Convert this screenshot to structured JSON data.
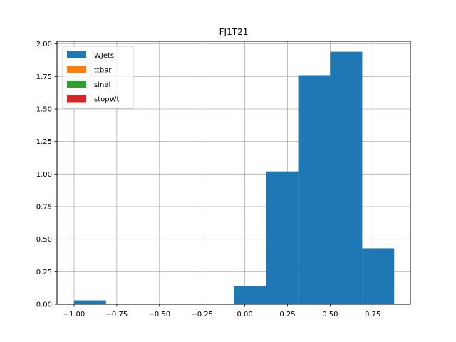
{
  "chart_data": {
    "type": "bar",
    "title": "FJ1T21",
    "xlabel": "",
    "ylabel": "",
    "xlim": [
      -1.1,
      0.97
    ],
    "ylim": [
      0,
      2.02
    ],
    "grid": true,
    "legend_position": "upper-left",
    "x_ticks": [
      {
        "value": -1.0,
        "label": "−1.00"
      },
      {
        "value": -0.75,
        "label": "−0.75"
      },
      {
        "value": -0.5,
        "label": "−0.50"
      },
      {
        "value": -0.25,
        "label": "−0.25"
      },
      {
        "value": 0.0,
        "label": "0.00"
      },
      {
        "value": 0.25,
        "label": "0.25"
      },
      {
        "value": 0.5,
        "label": "0.50"
      },
      {
        "value": 0.75,
        "label": "0.75"
      }
    ],
    "y_ticks": [
      {
        "value": 0.0,
        "label": "0.00"
      },
      {
        "value": 0.25,
        "label": "0.25"
      },
      {
        "value": 0.5,
        "label": "0.50"
      },
      {
        "value": 0.75,
        "label": "0.75"
      },
      {
        "value": 1.0,
        "label": "1.00"
      },
      {
        "value": 1.25,
        "label": "1.25"
      },
      {
        "value": 1.5,
        "label": "1.50"
      },
      {
        "value": 1.75,
        "label": "1.75"
      },
      {
        "value": 2.0,
        "label": "2.00"
      }
    ],
    "series": [
      {
        "name": "WJets",
        "color": "#1f77b4",
        "bins": [
          {
            "x0": -1.0,
            "x1": -0.813,
            "value": 0.03
          },
          {
            "x0": -0.063,
            "x1": 0.125,
            "value": 0.14
          },
          {
            "x0": 0.125,
            "x1": 0.313,
            "value": 1.02
          },
          {
            "x0": 0.313,
            "x1": 0.5,
            "value": 1.76
          },
          {
            "x0": 0.5,
            "x1": 0.688,
            "value": 1.94
          },
          {
            "x0": 0.688,
            "x1": 0.875,
            "value": 0.43
          }
        ]
      },
      {
        "name": "ttbar",
        "color": "#ff7f0e",
        "bins": []
      },
      {
        "name": "sinal",
        "color": "#2ca02c",
        "bins": []
      },
      {
        "name": "stopWt",
        "color": "#d62728",
        "bins": []
      }
    ]
  }
}
